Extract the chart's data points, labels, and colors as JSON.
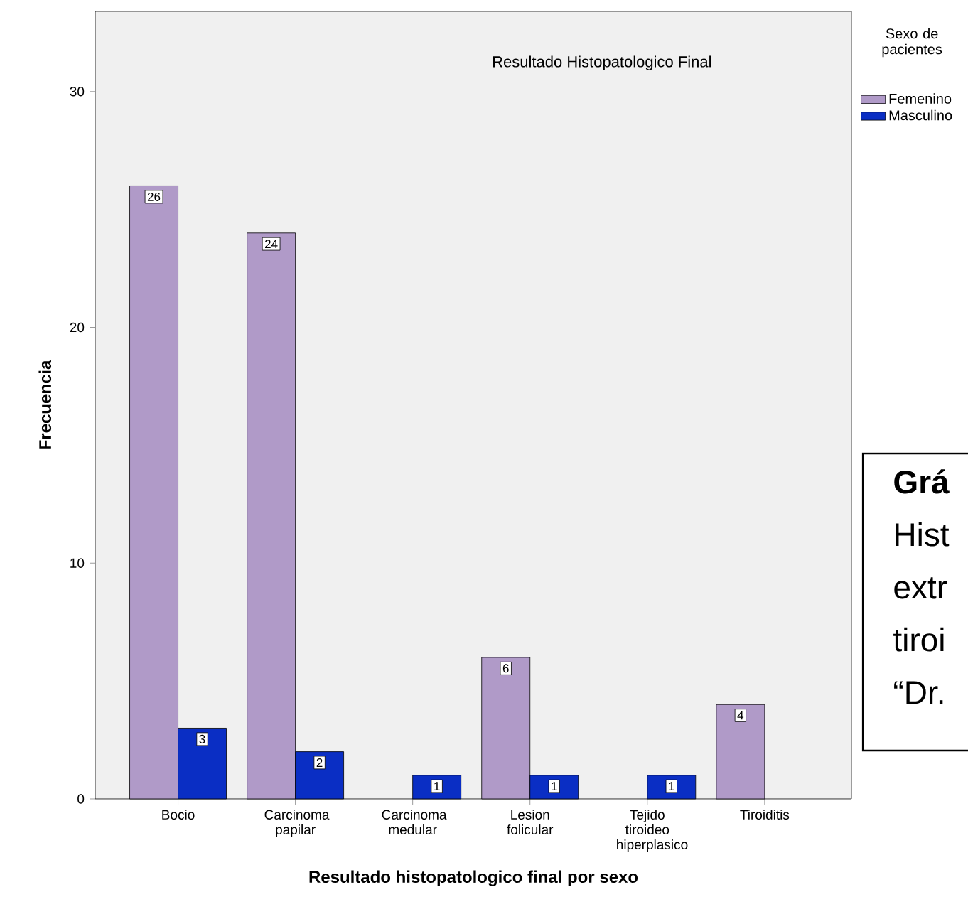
{
  "chart_data": {
    "type": "bar",
    "title": "Resultado Histopatologico Final",
    "xlabel": "Resultado histopatologico final por sexo",
    "ylabel": "Frecuencia",
    "legend_title": "Sexo de pacientes",
    "categories": [
      "Bocio",
      "Carcinoma papilar",
      "Carcinoma medular",
      "Lesion folicular",
      "Tejido tiroideo hiperplasico",
      "Tiroiditis"
    ],
    "series": [
      {
        "name": "Femenino",
        "color": "#b09ac8",
        "values": [
          26,
          24,
          null,
          6,
          null,
          4
        ]
      },
      {
        "name": "Masculino",
        "color": "#0a2ec4",
        "values": [
          3,
          2,
          1,
          1,
          1,
          null
        ]
      }
    ],
    "ylim": [
      0,
      33.4
    ],
    "yticks": [
      0,
      10,
      20,
      30
    ],
    "data_labels": true,
    "grid": false,
    "legend": "top right",
    "annotations": [
      "Grá",
      "Hist",
      "extr",
      "tiroi",
      "“Dr."
    ]
  }
}
